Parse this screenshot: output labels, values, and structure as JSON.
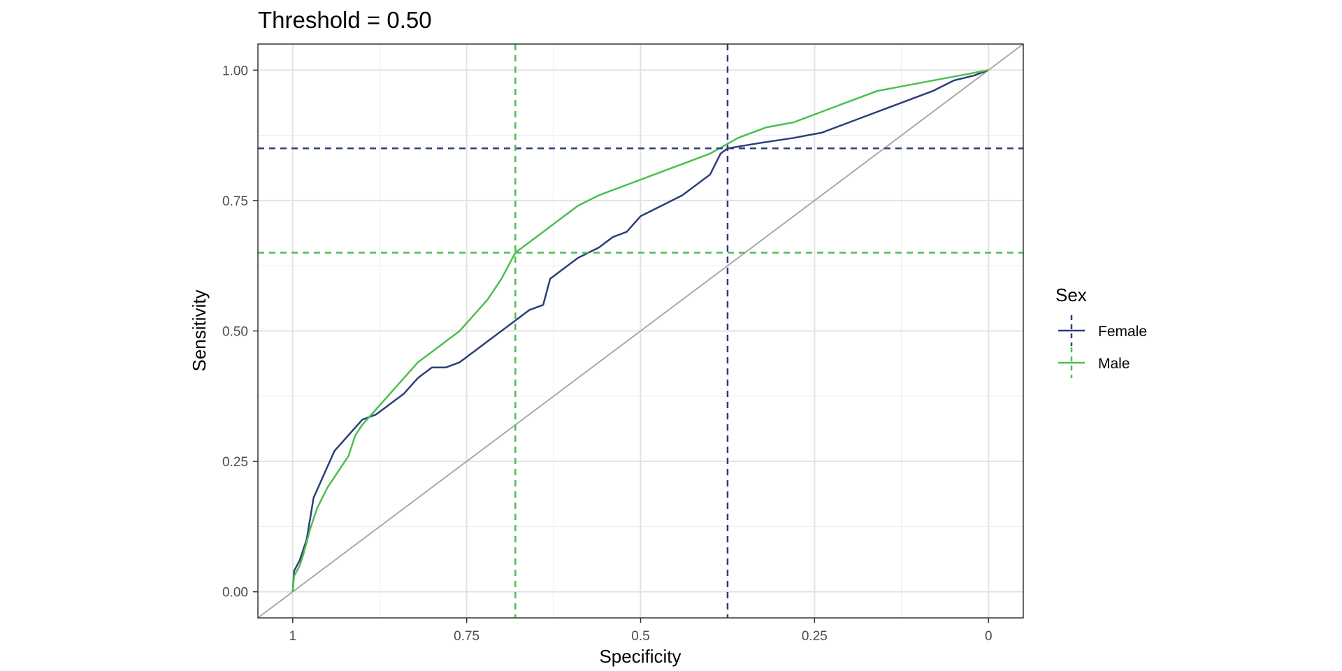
{
  "chart_data": {
    "type": "line",
    "title": "Threshold = 0.50",
    "xlabel": "Specificity",
    "ylabel": "Sensitivity",
    "x_reversed": true,
    "xlim": [
      1.05,
      -0.05
    ],
    "ylim": [
      -0.05,
      1.05
    ],
    "x_ticks": [
      {
        "value": 1,
        "label": "1"
      },
      {
        "value": 0.75,
        "label": "0.75"
      },
      {
        "value": 0.5,
        "label": "0.5"
      },
      {
        "value": 0.25,
        "label": "0.25"
      },
      {
        "value": 0,
        "label": "0"
      }
    ],
    "y_ticks": [
      {
        "value": 0,
        "label": "0.00"
      },
      {
        "value": 0.25,
        "label": "0.25"
      },
      {
        "value": 0.5,
        "label": "0.50"
      },
      {
        "value": 0.75,
        "label": "0.75"
      },
      {
        "value": 1,
        "label": "1.00"
      }
    ],
    "grid": true,
    "legend": {
      "title": "Sex",
      "position": "right"
    },
    "reference_line": {
      "from": [
        1,
        0
      ],
      "to": [
        0,
        1
      ],
      "color": "#aaaaaa"
    },
    "series": [
      {
        "name": "Female",
        "color": "#2c3e7a",
        "threshold_point": {
          "specificity": 0.375,
          "sensitivity": 0.85
        },
        "points": [
          [
            1.0,
            0.0
          ],
          [
            0.998,
            0.04
          ],
          [
            0.99,
            0.06
          ],
          [
            0.985,
            0.08
          ],
          [
            0.98,
            0.1
          ],
          [
            0.975,
            0.14
          ],
          [
            0.97,
            0.18
          ],
          [
            0.96,
            0.21
          ],
          [
            0.95,
            0.24
          ],
          [
            0.94,
            0.27
          ],
          [
            0.92,
            0.3
          ],
          [
            0.9,
            0.33
          ],
          [
            0.88,
            0.34
          ],
          [
            0.86,
            0.36
          ],
          [
            0.84,
            0.38
          ],
          [
            0.82,
            0.41
          ],
          [
            0.8,
            0.43
          ],
          [
            0.78,
            0.43
          ],
          [
            0.76,
            0.44
          ],
          [
            0.74,
            0.46
          ],
          [
            0.72,
            0.48
          ],
          [
            0.7,
            0.5
          ],
          [
            0.68,
            0.52
          ],
          [
            0.66,
            0.54
          ],
          [
            0.64,
            0.55
          ],
          [
            0.63,
            0.6
          ],
          [
            0.61,
            0.62
          ],
          [
            0.59,
            0.64
          ],
          [
            0.56,
            0.66
          ],
          [
            0.54,
            0.68
          ],
          [
            0.52,
            0.69
          ],
          [
            0.5,
            0.72
          ],
          [
            0.47,
            0.74
          ],
          [
            0.44,
            0.76
          ],
          [
            0.42,
            0.78
          ],
          [
            0.4,
            0.8
          ],
          [
            0.385,
            0.84
          ],
          [
            0.375,
            0.85
          ],
          [
            0.33,
            0.86
          ],
          [
            0.28,
            0.87
          ],
          [
            0.24,
            0.88
          ],
          [
            0.2,
            0.9
          ],
          [
            0.16,
            0.92
          ],
          [
            0.12,
            0.94
          ],
          [
            0.08,
            0.96
          ],
          [
            0.05,
            0.98
          ],
          [
            0.02,
            0.99
          ],
          [
            0.0,
            1.0
          ]
        ]
      },
      {
        "name": "Male",
        "color": "#4cbf50",
        "threshold_point": {
          "specificity": 0.68,
          "sensitivity": 0.65
        },
        "points": [
          [
            1.0,
            0.0
          ],
          [
            0.998,
            0.03
          ],
          [
            0.99,
            0.05
          ],
          [
            0.985,
            0.07
          ],
          [
            0.975,
            0.12
          ],
          [
            0.965,
            0.16
          ],
          [
            0.95,
            0.2
          ],
          [
            0.94,
            0.22
          ],
          [
            0.92,
            0.26
          ],
          [
            0.91,
            0.3
          ],
          [
            0.9,
            0.32
          ],
          [
            0.88,
            0.35
          ],
          [
            0.86,
            0.38
          ],
          [
            0.84,
            0.41
          ],
          [
            0.82,
            0.44
          ],
          [
            0.8,
            0.46
          ],
          [
            0.78,
            0.48
          ],
          [
            0.76,
            0.5
          ],
          [
            0.74,
            0.53
          ],
          [
            0.72,
            0.56
          ],
          [
            0.7,
            0.6
          ],
          [
            0.68,
            0.65
          ],
          [
            0.65,
            0.68
          ],
          [
            0.62,
            0.71
          ],
          [
            0.59,
            0.74
          ],
          [
            0.56,
            0.76
          ],
          [
            0.52,
            0.78
          ],
          [
            0.48,
            0.8
          ],
          [
            0.44,
            0.82
          ],
          [
            0.4,
            0.84
          ],
          [
            0.36,
            0.87
          ],
          [
            0.32,
            0.89
          ],
          [
            0.28,
            0.9
          ],
          [
            0.24,
            0.92
          ],
          [
            0.2,
            0.94
          ],
          [
            0.16,
            0.96
          ],
          [
            0.12,
            0.97
          ],
          [
            0.08,
            0.98
          ],
          [
            0.04,
            0.99
          ],
          [
            0.0,
            1.0
          ]
        ]
      }
    ]
  }
}
